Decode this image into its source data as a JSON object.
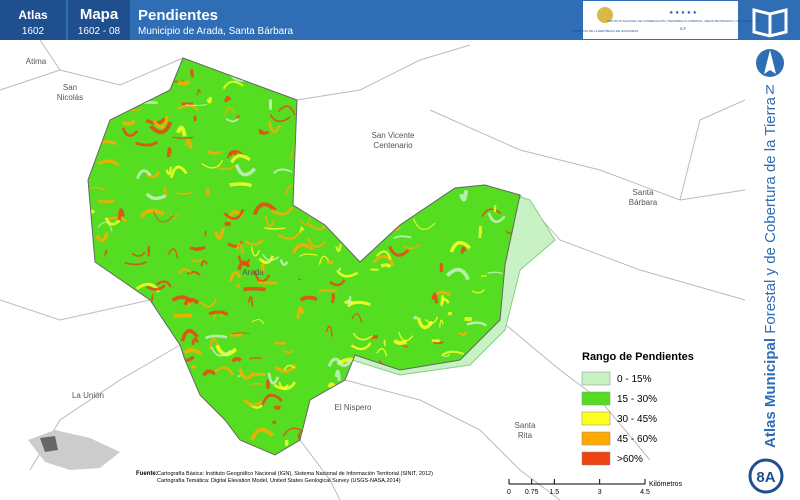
{
  "header": {
    "atlas_label": "Atlas",
    "atlas_code": "1602",
    "map_label": "Mapa",
    "map_code": "1602 - 08",
    "title": "Pendientes",
    "subtitle": "Municipio de Arada, Santa Bárbara",
    "logo_gov": "GOBIERNO DE LA REPÚBLICA DE HONDURAS",
    "logo_icf": "INSTITUTO NACIONAL DE CONSERVACIÓN Y DESARROLLO FORESTAL, ÁREAS PROTEGIDAS Y VIDA SILVESTRE",
    "logo_icf_short": "ICF"
  },
  "places": [
    {
      "name": "Atima"
    },
    {
      "name": "San\nNicolás"
    },
    {
      "name": "San Vicente\nCentenario"
    },
    {
      "name": "Santa\nBárbara"
    },
    {
      "name": "Arada"
    },
    {
      "name": "La Unión"
    },
    {
      "name": "El Nispero"
    },
    {
      "name": "Santa\nRita"
    }
  ],
  "legend": {
    "title": "Rango de Pendientes",
    "items": [
      {
        "label": "0 - 15%",
        "color": "#c8f2c4"
      },
      {
        "label": "15 - 30%",
        "color": "#55dd22"
      },
      {
        "label": "30 - 45%",
        "color": "#ffff22"
      },
      {
        "label": "45 - 60%",
        "color": "#ffaa00"
      },
      {
        "label": ">60%",
        "color": "#ee4411"
      }
    ]
  },
  "scale": {
    "ticks": [
      0,
      0.75,
      1.5,
      3,
      4.5
    ],
    "unit": "Kilómetros"
  },
  "source": {
    "label": "Fuente:",
    "lines": [
      "Cartografía Básica: Instituto Geográfico Nacional (IGN), Sistema Nacional de Información Territorial (SINIT, 2012)",
      "Cartografía Temática: Digital Elevation Model, United States Geological Survey (USGS-NASA,2014)"
    ]
  },
  "side": {
    "north": "N",
    "banner_bold": "Atlas Municipal",
    "banner_rest": " Forestal y de Cobertura de la Tierra",
    "sheet": "8A"
  }
}
